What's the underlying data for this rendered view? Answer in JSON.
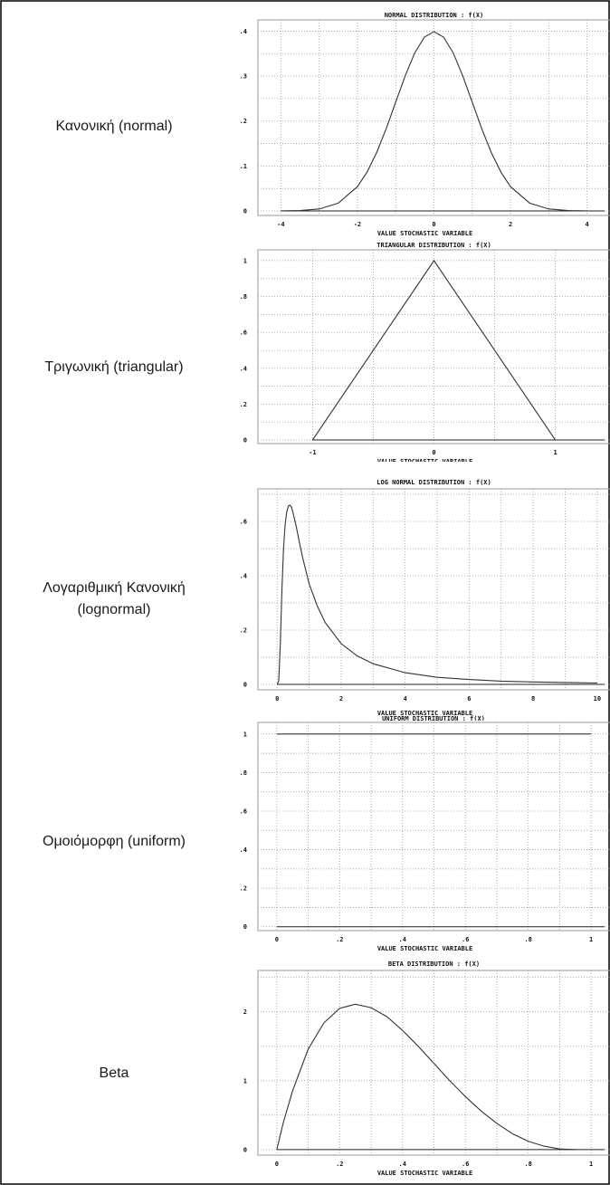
{
  "rows": [
    {
      "label_line1": "Κανονική (normal)",
      "label_line2": ""
    },
    {
      "label_line1": "Τριγωνική (triangular)",
      "label_line2": ""
    },
    {
      "label_line1": "Λογαριθμική Κανονική",
      "label_line2": "(lognormal)"
    },
    {
      "label_line1": "Ομοιόμορφη (uniform)",
      "label_line2": ""
    },
    {
      "label_line1": "Beta",
      "label_line2": ""
    }
  ],
  "colors": {
    "curve": "#333333",
    "grid": "#9a9a9a",
    "axis": "#222222",
    "border": "#000000"
  },
  "chart_data": [
    {
      "type": "line",
      "title": "NORMAL DISTRIBUTION : f(X)",
      "xlabel": "VALUE STOCHASTIC VARIABLE",
      "ylabel": "",
      "xlim": [
        -4.6,
        4.6
      ],
      "ylim": [
        -0.01,
        0.425
      ],
      "xticks": [
        -4,
        -2,
        0,
        2,
        4
      ],
      "xtick_labels": [
        "-4",
        "-2",
        "0",
        "2",
        "4"
      ],
      "yticks": [
        0,
        0.1,
        0.2,
        0.3,
        0.4
      ],
      "ytick_labels": [
        "0",
        ".1",
        ".2",
        ".3",
        ".4"
      ],
      "grid": true,
      "series": [
        {
          "x": [
            -4,
            -3.5,
            -3,
            -2.5,
            -2,
            -1.75,
            -1.5,
            -1.25,
            -1,
            -0.75,
            -0.5,
            -0.25,
            0,
            0.25,
            0.5,
            0.75,
            1,
            1.25,
            1.5,
            1.75,
            2,
            2.5,
            3,
            3.5,
            4
          ],
          "y": [
            0.0001,
            0.0009,
            0.0044,
            0.0175,
            0.054,
            0.0863,
            0.1295,
            0.1826,
            0.242,
            0.3011,
            0.3521,
            0.3867,
            0.3989,
            0.3867,
            0.3521,
            0.3011,
            0.242,
            0.1826,
            0.1295,
            0.0863,
            0.054,
            0.0175,
            0.0044,
            0.0009,
            0.0001
          ]
        }
      ]
    },
    {
      "type": "line",
      "title": "TRIANGULAR DISTRIBUTION : f(X)",
      "xlabel": "VALUE STOCHASTIC VARIABLE",
      "ylabel": "",
      "xlim": [
        -1.45,
        1.45
      ],
      "ylim": [
        -0.02,
        1.06
      ],
      "xticks": [
        -1,
        0,
        1
      ],
      "xtick_labels": [
        "-1",
        "0",
        "1"
      ],
      "yticks": [
        0,
        0.2,
        0.4,
        0.6,
        0.8,
        1
      ],
      "ytick_labels": [
        "0",
        ".2",
        ".4",
        ".6",
        ".8",
        "1"
      ],
      "grid": true,
      "series": [
        {
          "x": [
            -1,
            0,
            1
          ],
          "y": [
            0,
            1,
            0
          ]
        }
      ]
    },
    {
      "type": "line",
      "title": "LOG NORMAL DISTRIBUTION : f(X)",
      "xlabel": "VALUE STOCHASTIC VARIABLE",
      "ylabel": "",
      "xlim": [
        -0.6,
        10.4
      ],
      "ylim": [
        -0.02,
        0.72
      ],
      "xticks": [
        0,
        2,
        4,
        6,
        8,
        10
      ],
      "xtick_labels": [
        "0",
        "2",
        "4",
        "6",
        "8",
        "10"
      ],
      "yticks": [
        0,
        0.2,
        0.4,
        0.6
      ],
      "ytick_labels": [
        "0",
        ".2",
        ".4",
        ".6"
      ],
      "grid": true,
      "series": [
        {
          "x": [
            0,
            0.05,
            0.1,
            0.15,
            0.2,
            0.25,
            0.3,
            0.35,
            0.4,
            0.45,
            0.5,
            0.6,
            0.7,
            0.8,
            1,
            1.25,
            1.5,
            2,
            2.5,
            3,
            4,
            5,
            6,
            7,
            8,
            9,
            10
          ],
          "y": [
            0,
            0.012,
            0.15,
            0.35,
            0.5,
            0.59,
            0.635,
            0.656,
            0.66,
            0.652,
            0.63,
            0.58,
            0.52,
            0.465,
            0.37,
            0.29,
            0.228,
            0.15,
            0.105,
            0.076,
            0.043,
            0.026,
            0.018,
            0.012,
            0.009,
            0.007,
            0.005
          ]
        }
      ]
    },
    {
      "type": "line",
      "title": "UNIFORM DISTRIBUTION : f(X)",
      "xlabel": "VALUE STOCHASTIC VARIABLE",
      "ylabel": "",
      "xlim": [
        -0.06,
        1.06
      ],
      "ylim": [
        -0.02,
        1.06
      ],
      "xticks": [
        0,
        0.2,
        0.4,
        0.6,
        0.8,
        1
      ],
      "xtick_labels": [
        "0",
        ".2",
        ".4",
        ".6",
        ".8",
        "1"
      ],
      "yticks": [
        0,
        0.2,
        0.4,
        0.6,
        0.8,
        1
      ],
      "ytick_labels": [
        "0",
        ".2",
        ".4",
        ".6",
        ".8",
        "1"
      ],
      "grid": true,
      "series": [
        {
          "x": [
            0,
            1
          ],
          "y": [
            1,
            1
          ]
        }
      ]
    },
    {
      "type": "line",
      "title": "BETA DISTRIBUTION : f(X)",
      "xlabel": "VALUE STOCHASTIC VARIABLE",
      "ylabel": "",
      "xlim": [
        -0.06,
        1.06
      ],
      "ylim": [
        -0.08,
        2.6
      ],
      "xticks": [
        0,
        0.2,
        0.4,
        0.6,
        0.8,
        1
      ],
      "xtick_labels": [
        "0",
        ".2",
        ".4",
        ".6",
        ".8",
        "1"
      ],
      "yticks": [
        0,
        1,
        2
      ],
      "ytick_labels": [
        "0",
        "1",
        "2"
      ],
      "grid": true,
      "series": [
        {
          "x": [
            0,
            0.02,
            0.05,
            0.1,
            0.15,
            0.2,
            0.25,
            0.3,
            0.35,
            0.4,
            0.45,
            0.5,
            0.55,
            0.6,
            0.65,
            0.7,
            0.75,
            0.8,
            0.85,
            0.9,
            0.95
          ],
          "y": [
            0,
            0.38,
            0.85,
            1.46,
            1.84,
            2.05,
            2.11,
            2.06,
            1.93,
            1.73,
            1.5,
            1.25,
            1.0,
            0.77,
            0.56,
            0.38,
            0.23,
            0.12,
            0.05,
            0.01,
            0
          ]
        }
      ]
    }
  ]
}
